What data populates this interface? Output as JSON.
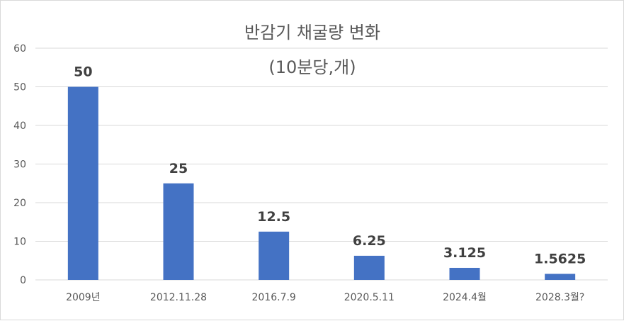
{
  "chart_data": {
    "type": "bar",
    "title": "반감기 채굴량 변화",
    "subtitle": "(10분당,개)",
    "categories": [
      "2009년",
      "2012.11.28",
      "2016.7.9",
      "2020.5.11",
      "2024.4월",
      "2028.3월?"
    ],
    "values": [
      50,
      25,
      12.5,
      6.25,
      3.125,
      1.5625
    ],
    "data_labels": [
      "50",
      "25",
      "12.5",
      "6.25",
      "3.125",
      "1.5625"
    ],
    "yticks": [
      0,
      10,
      20,
      30,
      40,
      50,
      60
    ],
    "ylim": [
      0,
      60
    ],
    "xlabel": "",
    "ylabel": "",
    "grid": true,
    "legend": "none",
    "colors": {
      "bar": "#4472c4",
      "grid": "#d9d9d9",
      "text": "#595959",
      "label": "#404040"
    }
  }
}
